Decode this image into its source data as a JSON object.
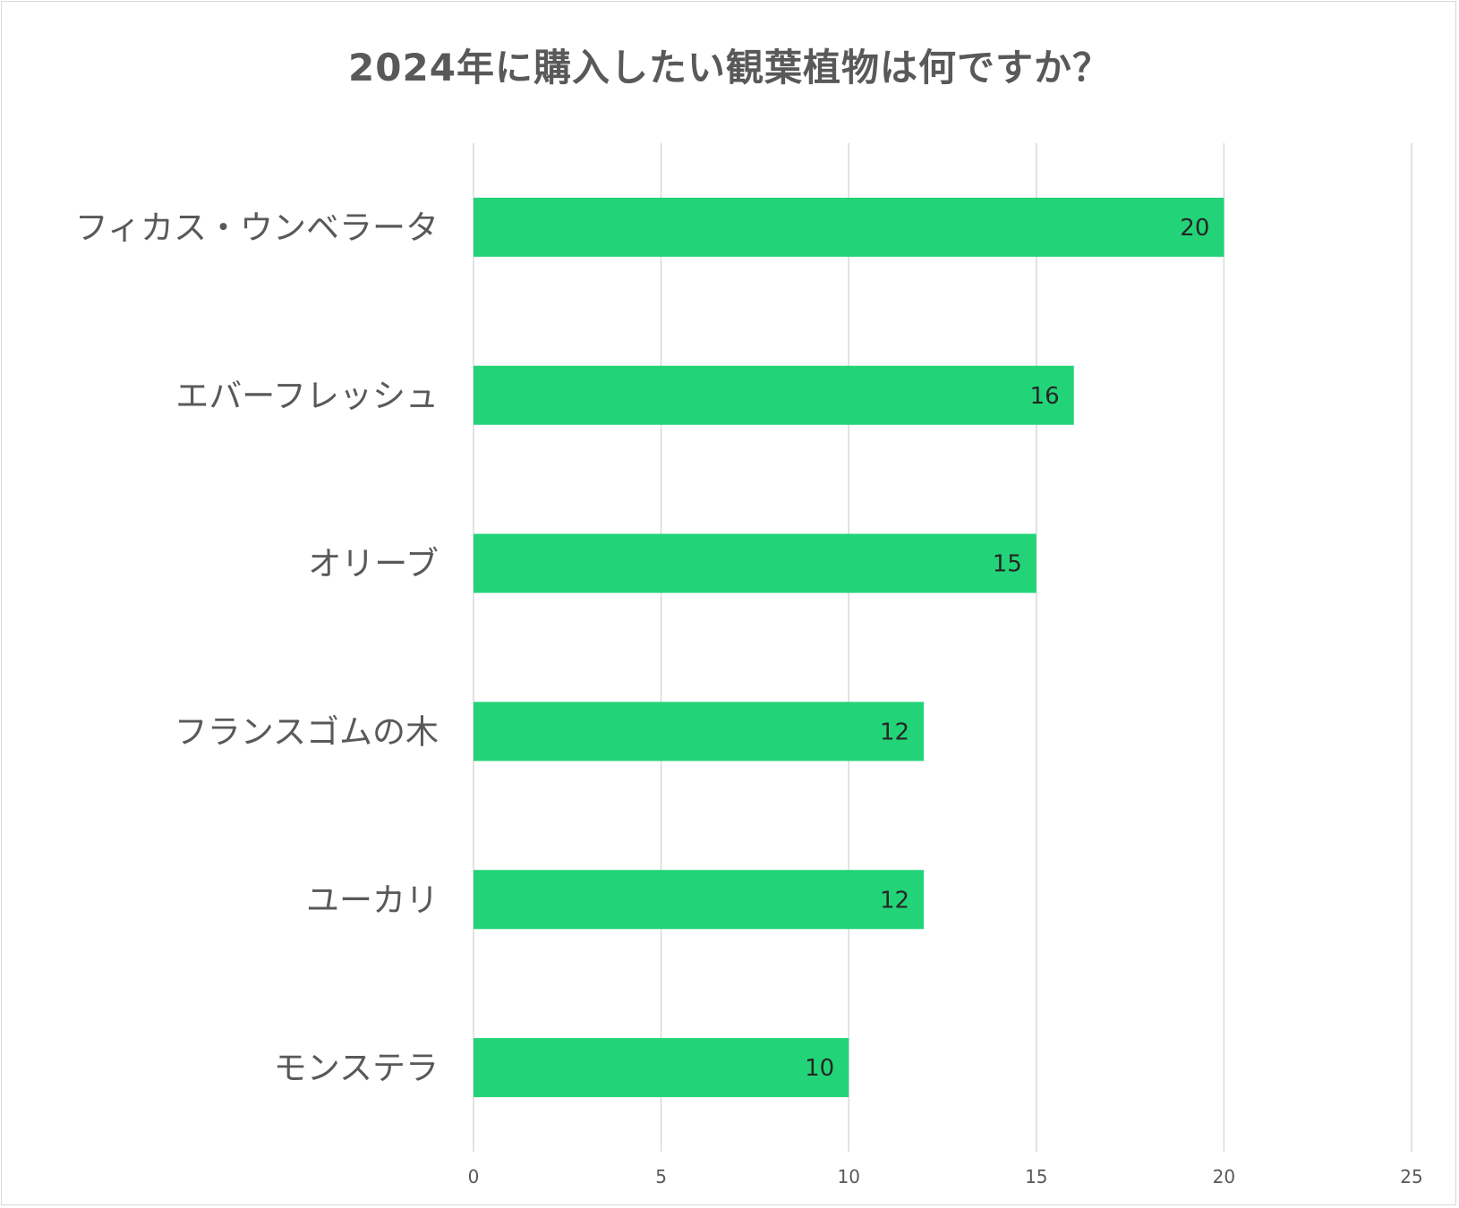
{
  "chart_data": {
    "type": "bar",
    "orientation": "horizontal",
    "title": "2024年に購入したい観葉植物は何ですか？",
    "categories": [
      "フィカス・ウンベラータ",
      "エバーフレッシュ",
      "オリーブ",
      "フランスゴムの木",
      "ユーカリ",
      "モンステラ"
    ],
    "values": [
      20,
      16,
      15,
      12,
      12,
      10
    ],
    "xlim": [
      0,
      25
    ],
    "x_ticks": [
      "0",
      "5",
      "10",
      "15",
      "20",
      "25"
    ],
    "xlabel": "",
    "ylabel": "",
    "grid": "vertical",
    "legend": "none",
    "bar_color": "#22d477",
    "data_labels": [
      "20",
      "16",
      "15",
      "12",
      "12",
      "10"
    ]
  }
}
